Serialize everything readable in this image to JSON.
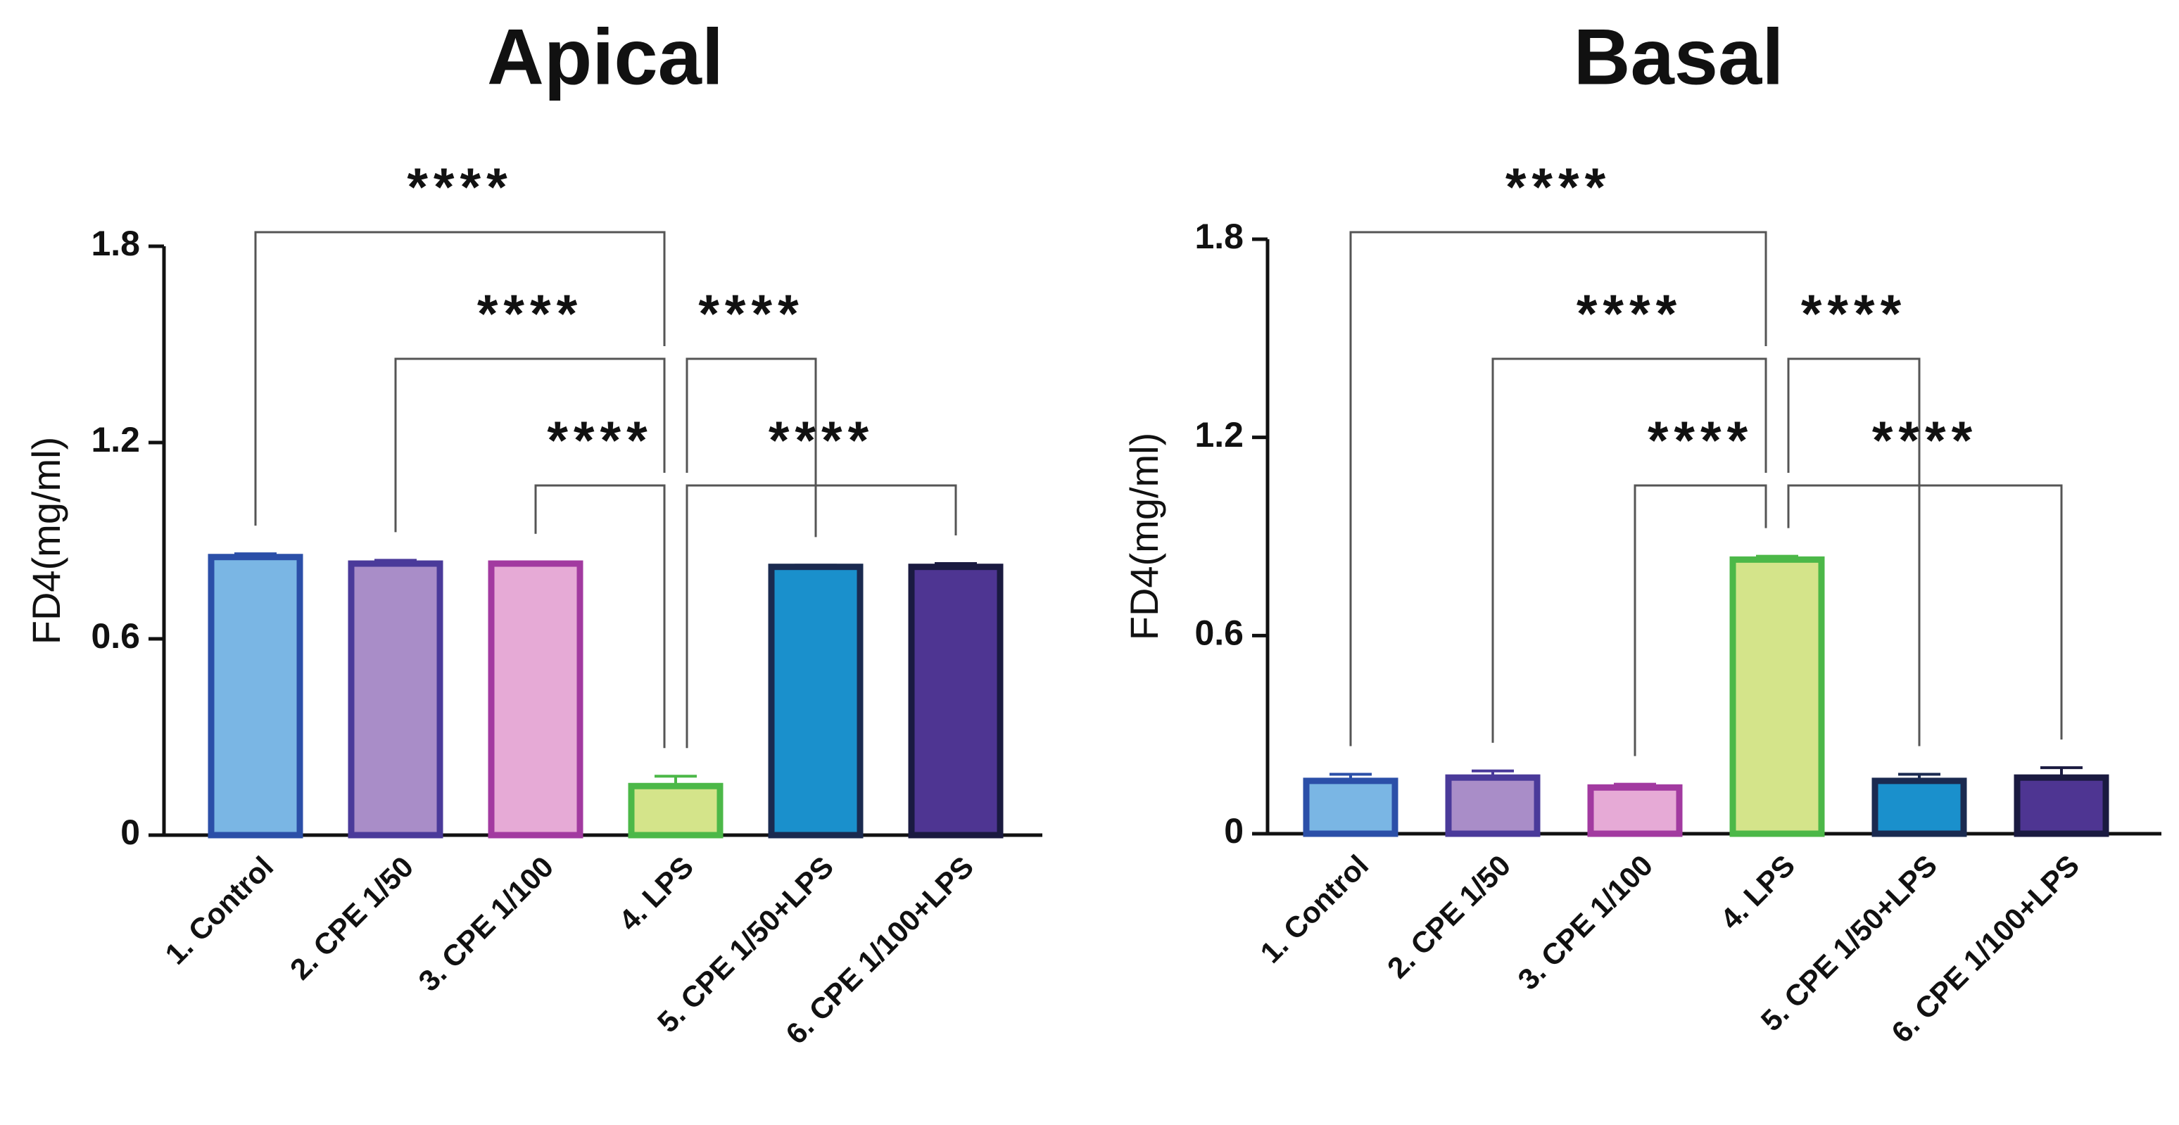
{
  "chart_data": [
    {
      "type": "bar",
      "title": "Apical",
      "ylabel": "FD4(mg/ml)",
      "categories": [
        "1. Control",
        "2. CPE 1/50",
        "3. CPE 1/100",
        "4. LPS",
        "5. CPE 1/50+LPS",
        "6. CPE 1/100+LPS"
      ],
      "values": [
        0.85,
        0.83,
        0.83,
        0.15,
        0.82,
        0.82
      ],
      "errors": [
        0.01,
        0.01,
        0.005,
        0.03,
        0.005,
        0.01
      ],
      "colors": [
        "#7ab6e4",
        "#a98dc8",
        "#e6aad6",
        "#d4e48a",
        "#1a90cc",
        "#4e3592"
      ],
      "edge_colors": [
        "#2b4fa8",
        "#4a3a9a",
        "#a23aa0",
        "#4cb848",
        "#1a2a50",
        "#1a1a40"
      ],
      "ylim": [
        0,
        1.8
      ],
      "yticks": [
        0.0,
        0.6,
        1.2,
        1.8
      ],
      "significance": [
        [
          {
            "from": 0,
            "to": 3,
            "label": "****"
          }
        ],
        [
          {
            "from": 1,
            "to": 3,
            "label": "****"
          },
          {
            "from": 3,
            "to": 4,
            "label": "****"
          }
        ],
        [
          {
            "from": 2,
            "to": 3,
            "label": "****"
          },
          {
            "from": 3,
            "to": 5,
            "label": "****"
          }
        ]
      ]
    },
    {
      "type": "bar",
      "title": "Basal",
      "ylabel": "FD4(mg/ml)",
      "categories": [
        "1. Control",
        "2. CPE 1/50",
        "3. CPE 1/100",
        "4. LPS",
        "5. CPE 1/50+LPS",
        "6. CPE 1/100+LPS"
      ],
      "values": [
        0.16,
        0.17,
        0.14,
        0.83,
        0.16,
        0.17
      ],
      "errors": [
        0.02,
        0.02,
        0.01,
        0.01,
        0.02,
        0.03
      ],
      "colors": [
        "#7ab6e4",
        "#a98dc8",
        "#e6aad6",
        "#d4e48a",
        "#1a90cc",
        "#4e3592"
      ],
      "edge_colors": [
        "#2b4fa8",
        "#4a3a9a",
        "#a23aa0",
        "#4cb848",
        "#1a2a50",
        "#1a1a40"
      ],
      "ylim": [
        0,
        1.8
      ],
      "yticks": [
        0.0,
        0.6,
        1.2,
        1.8
      ],
      "significance": [
        [
          {
            "from": 0,
            "to": 3,
            "label": "****"
          }
        ],
        [
          {
            "from": 1,
            "to": 3,
            "label": "****"
          },
          {
            "from": 3,
            "to": 4,
            "label": "****"
          }
        ],
        [
          {
            "from": 2,
            "to": 3,
            "label": "****"
          },
          {
            "from": 3,
            "to": 5,
            "label": "****"
          }
        ]
      ]
    }
  ]
}
